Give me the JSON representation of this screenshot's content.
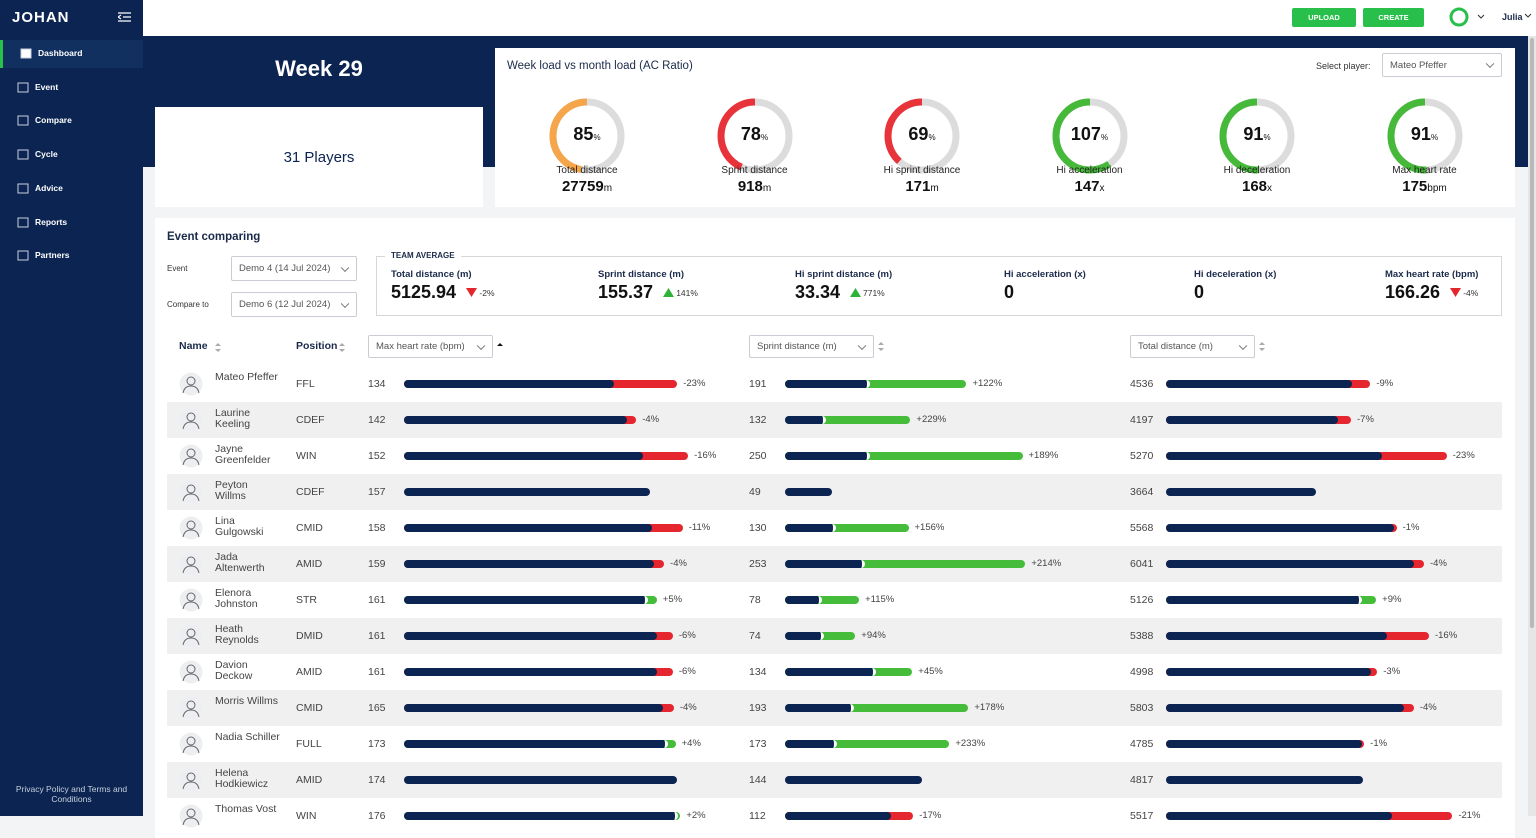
{
  "sidebar": {
    "logo": "JOHAN",
    "menu": [
      "Dashboard",
      "Event",
      "Compare",
      "Cycle",
      "Advice",
      "Reports",
      "Partners"
    ],
    "footer": "Privacy Policy and Terms and Conditions"
  },
  "topbar": {
    "upload": "UPLOAD",
    "create": "CREATE",
    "user": "Julia"
  },
  "week": {
    "title": "Week 29",
    "players": "31 Players"
  },
  "ac_ratio": {
    "title": "Week load vs month load (AC Ratio)",
    "select_label": "Select player:",
    "player": "Mateo Pfeffer",
    "percent_unit": "%",
    "gauges": [
      {
        "percent": 85,
        "label": "Total distance",
        "value": 27759,
        "unit": "m",
        "color": "#f5a54a"
      },
      {
        "percent": 78,
        "label": "Sprint distance",
        "value": 918,
        "unit": "m",
        "color": "#e8333a"
      },
      {
        "percent": 69,
        "label": "Hi sprint distance",
        "value": 171,
        "unit": "m",
        "color": "#e8333a"
      },
      {
        "percent": 107,
        "label": "Hi acceleration",
        "value": 147,
        "unit": "x",
        "color": "#46b93a"
      },
      {
        "percent": 91,
        "label": "Hi deceleration",
        "value": 168,
        "unit": "x",
        "color": "#46b93a"
      },
      {
        "percent": 91,
        "label": "Max heart rate",
        "value": 175,
        "unit": "bpm",
        "color": "#46b93a"
      }
    ]
  },
  "event_comparing": {
    "title": "Event comparing",
    "event_label": "Event",
    "event": "Demo 4 (14 Jul 2024)",
    "compare_label": "Compare to",
    "compare": "Demo 6 (12 Jul 2024)",
    "team_average": {
      "title": "TEAM AVERAGE",
      "metrics": [
        {
          "label": "Total distance (m)",
          "value": 5125.94,
          "change": {
            "value": -2,
            "label": "-2%"
          }
        },
        {
          "label": "Sprint distance (m)",
          "value": 155.37,
          "change": {
            "value": 141,
            "label": "141%"
          }
        },
        {
          "label": "Hi sprint distance (m)",
          "value": 33.34,
          "change": {
            "value": 771,
            "label": "771%"
          }
        },
        {
          "label": "Hi acceleration (x)",
          "value": 0,
          "change": null
        },
        {
          "label": "Hi deceleration (x)",
          "value": 0,
          "change": null
        },
        {
          "label": "Max heart rate (bpm)",
          "value": 166.26,
          "change": {
            "value": -4,
            "label": "-4%"
          }
        }
      ]
    }
  },
  "table": {
    "headers": [
      "Name",
      "Position"
    ],
    "metric_selects": [
      "Max heart rate (bpm)",
      "Sprint distance (m)",
      "Total distance (m)"
    ],
    "rows": [
      {
        "name": "Mateo Pfeffer",
        "position": "FFL",
        "metrics": [
          {
            "value": 134,
            "change": {
              "value": -23,
              "label": "-23%"
            }
          },
          {
            "value": 191,
            "change": {
              "value": 122,
              "label": "+122%"
            }
          },
          {
            "value": 4536,
            "change": {
              "value": -9,
              "label": "-9%"
            }
          }
        ]
      },
      {
        "name": "Laurine Keeling",
        "position": "CDEF",
        "metrics": [
          {
            "value": 142,
            "change": {
              "value": -4,
              "label": "-4%"
            }
          },
          {
            "value": 132,
            "change": {
              "value": 229,
              "label": "+229%"
            }
          },
          {
            "value": 4197,
            "change": {
              "value": -7,
              "label": "-7%"
            }
          }
        ]
      },
      {
        "name": "Jayne Greenfelder",
        "position": "WIN",
        "metrics": [
          {
            "value": 152,
            "change": {
              "value": -16,
              "label": "-16%"
            }
          },
          {
            "value": 250,
            "change": {
              "value": 189,
              "label": "+189%"
            }
          },
          {
            "value": 5270,
            "change": {
              "value": -23,
              "label": "-23%"
            }
          }
        ]
      },
      {
        "name": "Peyton Willms",
        "position": "CDEF",
        "metrics": [
          {
            "value": 157,
            "change": null
          },
          {
            "value": 49,
            "change": null
          },
          {
            "value": 3664,
            "change": null
          }
        ]
      },
      {
        "name": "Lina Gulgowski",
        "position": "CMID",
        "metrics": [
          {
            "value": 158,
            "change": {
              "value": -11,
              "label": "-11%"
            }
          },
          {
            "value": 130,
            "change": {
              "value": 156,
              "label": "+156%"
            }
          },
          {
            "value": 5568,
            "change": {
              "value": -1,
              "label": "-1%"
            }
          }
        ]
      },
      {
        "name": "Jada Altenwerth",
        "position": "AMID",
        "metrics": [
          {
            "value": 159,
            "change": {
              "value": -4,
              "label": "-4%"
            }
          },
          {
            "value": 253,
            "change": {
              "value": 214,
              "label": "+214%"
            }
          },
          {
            "value": 6041,
            "change": {
              "value": -4,
              "label": "-4%"
            }
          }
        ]
      },
      {
        "name": "Elenora Johnston",
        "position": "STR",
        "metrics": [
          {
            "value": 161,
            "change": {
              "value": 5,
              "label": "+5%"
            }
          },
          {
            "value": 78,
            "change": {
              "value": 115,
              "label": "+115%"
            }
          },
          {
            "value": 5126,
            "change": {
              "value": 9,
              "label": "+9%"
            }
          }
        ]
      },
      {
        "name": "Heath Reynolds",
        "position": "DMID",
        "metrics": [
          {
            "value": 161,
            "change": {
              "value": -6,
              "label": "-6%"
            }
          },
          {
            "value": 74,
            "change": {
              "value": 94,
              "label": "+94%"
            }
          },
          {
            "value": 5388,
            "change": {
              "value": -16,
              "label": "-16%"
            }
          }
        ]
      },
      {
        "name": "Davion Deckow",
        "position": "AMID",
        "metrics": [
          {
            "value": 161,
            "change": {
              "value": -6,
              "label": "-6%"
            }
          },
          {
            "value": 134,
            "change": {
              "value": 45,
              "label": "+45%"
            }
          },
          {
            "value": 4998,
            "change": {
              "value": -3,
              "label": "-3%"
            }
          }
        ]
      },
      {
        "name": "Morris Willms",
        "position": "CMID",
        "metrics": [
          {
            "value": 165,
            "change": {
              "value": -4,
              "label": "-4%"
            }
          },
          {
            "value": 193,
            "change": {
              "value": 178,
              "label": "+178%"
            }
          },
          {
            "value": 5803,
            "change": {
              "value": -4,
              "label": "-4%"
            }
          }
        ]
      },
      {
        "name": "Nadia Schiller",
        "position": "FULL",
        "metrics": [
          {
            "value": 173,
            "change": {
              "value": 4,
              "label": "+4%"
            }
          },
          {
            "value": 173,
            "change": {
              "value": 233,
              "label": "+233%"
            }
          },
          {
            "value": 4785,
            "change": {
              "value": -1,
              "label": "-1%"
            }
          }
        ]
      },
      {
        "name": "Helena Hodkiewicz",
        "position": "AMID",
        "metrics": [
          {
            "value": 174,
            "change": null
          },
          {
            "value": 144,
            "change": null
          },
          {
            "value": 4817,
            "change": null
          }
        ]
      },
      {
        "name": "Thomas Vost",
        "position": "WIN",
        "metrics": [
          {
            "value": 176,
            "change": {
              "value": 2,
              "label": "+2%"
            }
          },
          {
            "value": 112,
            "change": {
              "value": -17,
              "label": "-17%"
            }
          },
          {
            "value": 5517,
            "change": {
              "value": -21,
              "label": "-21%"
            }
          }
        ]
      }
    ]
  }
}
